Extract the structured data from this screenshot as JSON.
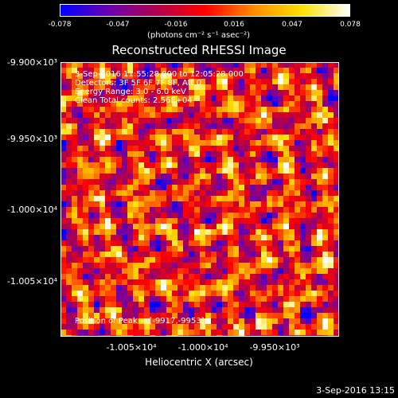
{
  "colorbar": {
    "min_label": "-0.078",
    "ticks": [
      "-0.078",
      "-0.047",
      "-0.016",
      "0.016",
      "0.047",
      "0.078"
    ],
    "unit_label": "(photons cm⁻² s⁻¹ asec⁻²)",
    "colors": [
      "#0000ff",
      "#6a00b0",
      "#b0004a",
      "#ff0000",
      "#ff8a00",
      "#ffe000",
      "#ffffff"
    ]
  },
  "title": "Reconstructed RHESSI Image",
  "overlay_lines": [
    "3-Sep-2016 11:55:28.000 to 12:05:28.000",
    "Detectors: 3F 5F 6F 7F 8F, Att 0",
    "Energy Range: 3.0 - 6.0 keV",
    "Clean    Total counts: 2.56E+04"
  ],
  "peak_label": "Position of Peak = [-9917,-9953]",
  "xlabel": "Heliocentric X (arcsec)",
  "timestamp": "3-Sep-2016 13:15",
  "y_ticks": [
    "-9.900×10³",
    "-9.950×10³",
    "-1.000×10⁴",
    "-1.005×10⁴"
  ],
  "x_ticks": [
    "-1.005×10⁴",
    "-1.000×10⁴",
    "-9.950×10³"
  ],
  "chart_data": {
    "type": "heatmap",
    "title": "Reconstructed RHESSI Image",
    "xlabel": "Heliocentric X (arcsec)",
    "ylabel": "",
    "colorbar_range": [
      -0.078,
      0.078
    ],
    "colorbar_units": "photons cm^-2 s^-1 asec^-2",
    "x_ticks": [
      -10050,
      -10000,
      -9950
    ],
    "y_ticks": [
      -9900,
      -9950,
      -10000,
      -10050
    ],
    "peak_position": [
      -9917,
      -9953
    ],
    "grid": false
  }
}
